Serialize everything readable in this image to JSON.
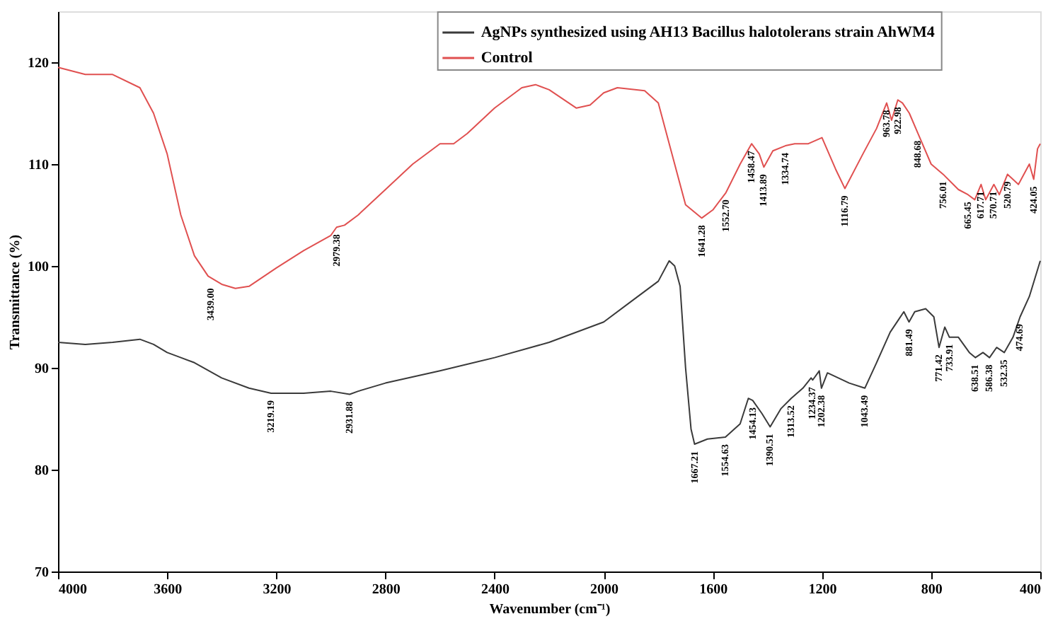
{
  "chart_data": {
    "type": "line",
    "xlabel": "Wavenumber (cm⁻¹)",
    "ylabel": "Transmittance (%)",
    "xlim": [
      4000,
      400
    ],
    "xticks": [
      4000,
      3600,
      3200,
      2800,
      2400,
      2000,
      1600,
      1200,
      800,
      400
    ],
    "ylim": [
      70,
      125
    ],
    "yticks": [
      70,
      80,
      90,
      100,
      110,
      120
    ],
    "grid": false,
    "legend": "top",
    "line_style": "solid",
    "marker": "none",
    "series": [
      {
        "name": "AgNPs synthesized using AH13 Bacillus halotolerans strain AhWM4",
        "color": "#3a3a3a",
        "x": [
          4000,
          3900,
          3800,
          3700,
          3650,
          3600,
          3500,
          3400,
          3300,
          3219,
          3100,
          3000,
          2931,
          2900,
          2800,
          2600,
          2400,
          2200,
          2000,
          1900,
          1800,
          1760,
          1740,
          1720,
          1700,
          1680,
          1667,
          1620,
          1554,
          1500,
          1470,
          1454,
          1420,
          1390,
          1350,
          1313,
          1270,
          1240,
          1234,
          1210,
          1202,
          1180,
          1100,
          1043,
          1000,
          950,
          900,
          881,
          860,
          820,
          790,
          771,
          750,
          733,
          700,
          660,
          638,
          610,
          586,
          560,
          532,
          500,
          474,
          440,
          400
        ],
        "values": [
          92.5,
          92.3,
          92.5,
          92.8,
          92.3,
          91.5,
          90.5,
          89,
          88,
          87.5,
          87.5,
          87.7,
          87.4,
          87.7,
          88.5,
          89.7,
          91,
          92.5,
          94.5,
          96.5,
          98.5,
          100.5,
          100,
          98,
          90,
          84,
          82.5,
          83,
          83.2,
          84.5,
          87,
          86.8,
          85.5,
          84.2,
          86,
          87,
          88,
          89,
          88.8,
          89.7,
          88,
          89.5,
          88.5,
          88,
          90.5,
          93.5,
          95.5,
          94.5,
          95.5,
          95.8,
          95,
          92,
          94,
          93,
          93,
          91.5,
          91,
          91.5,
          91,
          92,
          91.5,
          93,
          95,
          97,
          100.5
        ]
      },
      {
        "name": "Control",
        "color": "#e05050",
        "x": [
          4000,
          3900,
          3800,
          3700,
          3650,
          3600,
          3550,
          3500,
          3450,
          3400,
          3350,
          3300,
          3200,
          3100,
          3000,
          2979,
          2950,
          2900,
          2800,
          2700,
          2600,
          2550,
          2500,
          2400,
          2300,
          2250,
          2200,
          2100,
          2050,
          2000,
          1950,
          1850,
          1800,
          1750,
          1700,
          1641,
          1600,
          1552,
          1500,
          1458,
          1430,
          1413,
          1380,
          1334,
          1300,
          1250,
          1200,
          1150,
          1116,
          1050,
          1000,
          963,
          945,
          922,
          905,
          880,
          848,
          800,
          756,
          700,
          665,
          640,
          617,
          600,
          570,
          550,
          520,
          480,
          440,
          424,
          410,
          400
        ],
        "values": [
          119.5,
          118.8,
          118.8,
          117.5,
          115,
          111,
          105,
          101,
          99,
          98.2,
          97.8,
          98,
          99.8,
          101.5,
          103,
          103.8,
          104,
          105,
          107.5,
          110,
          112,
          112,
          113,
          115.5,
          117.5,
          117.8,
          117.3,
          115.5,
          115.8,
          117,
          117.5,
          117.2,
          116,
          111,
          106,
          104.7,
          105.5,
          107.2,
          110,
          112,
          111,
          109.7,
          111.3,
          111.8,
          112,
          112,
          112.6,
          109.5,
          107.6,
          111,
          113.5,
          116,
          114.3,
          116.3,
          116,
          115,
          113,
          110,
          109,
          107.5,
          107,
          106.5,
          108,
          106.5,
          108,
          107,
          109,
          108,
          110,
          108.5,
          111.5,
          112
        ]
      }
    ],
    "annotations": [
      {
        "text": "3439.00",
        "x": 3439,
        "y": 98.5
      },
      {
        "text": "2979.38",
        "x": 2979,
        "y": 103.8
      },
      {
        "text": "1641.28",
        "x": 1641,
        "y": 104.7
      },
      {
        "text": "1552.70",
        "x": 1552,
        "y": 107.2
      },
      {
        "text": "1458.47",
        "x": 1458,
        "y": 112
      },
      {
        "text": "1413.89",
        "x": 1413,
        "y": 109.7
      },
      {
        "text": "1334.74",
        "x": 1334,
        "y": 111.8
      },
      {
        "text": "1116.79",
        "x": 1116,
        "y": 107.6
      },
      {
        "text": "963.78",
        "x": 963,
        "y": 116
      },
      {
        "text": "922.98",
        "x": 922,
        "y": 116.3
      },
      {
        "text": "848.68",
        "x": 848,
        "y": 113
      },
      {
        "text": "756.01",
        "x": 756,
        "y": 109
      },
      {
        "text": "665.45",
        "x": 665,
        "y": 107
      },
      {
        "text": "617.71",
        "x": 617,
        "y": 108
      },
      {
        "text": "570.71",
        "x": 570,
        "y": 108
      },
      {
        "text": "520.79",
        "x": 520,
        "y": 109
      },
      {
        "text": "424.05",
        "x": 424,
        "y": 108.5
      },
      {
        "text": "3219.19",
        "x": 3219,
        "y": 87.5
      },
      {
        "text": "2931.88",
        "x": 2931,
        "y": 87.4
      },
      {
        "text": "1667.21",
        "x": 1667,
        "y": 82.5
      },
      {
        "text": "1554.63",
        "x": 1554,
        "y": 83.2
      },
      {
        "text": "1454.13",
        "x": 1454,
        "y": 86.8
      },
      {
        "text": "1390.51",
        "x": 1390,
        "y": 84.2
      },
      {
        "text": "1313.52",
        "x": 1313,
        "y": 87
      },
      {
        "text": "1234.37",
        "x": 1234,
        "y": 88.8
      },
      {
        "text": "1202.38",
        "x": 1202,
        "y": 88
      },
      {
        "text": "1043.49",
        "x": 1043,
        "y": 88
      },
      {
        "text": "881.49",
        "x": 881,
        "y": 94.5
      },
      {
        "text": "771.42",
        "x": 771,
        "y": 92
      },
      {
        "text": "733.91",
        "x": 733,
        "y": 93
      },
      {
        "text": "638.51",
        "x": 638,
        "y": 91
      },
      {
        "text": "586.38",
        "x": 586,
        "y": 91
      },
      {
        "text": "532.35",
        "x": 532,
        "y": 91.5
      },
      {
        "text": "474.69",
        "x": 474,
        "y": 95
      }
    ]
  }
}
